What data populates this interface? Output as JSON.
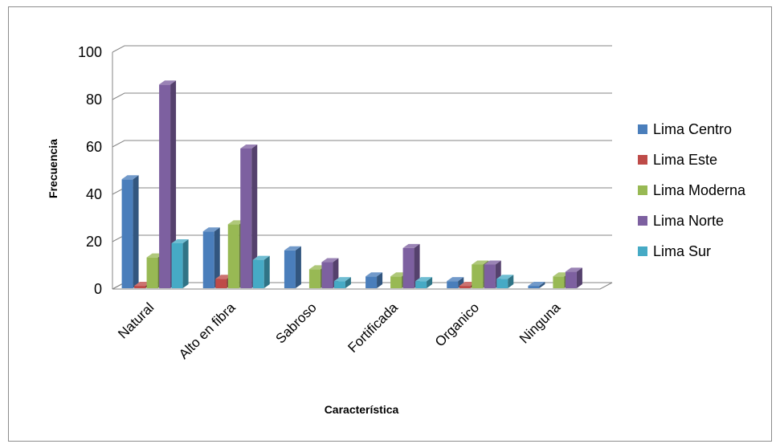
{
  "chart_data": {
    "type": "bar",
    "title": "",
    "xlabel": "Característica",
    "ylabel": "Frecuencia",
    "ylim": [
      0,
      100
    ],
    "yticks": [
      0,
      20,
      40,
      60,
      80,
      100
    ],
    "grid": true,
    "legend_position": "right",
    "categories": [
      "Natural",
      "Alto en fibra",
      "Sabroso",
      "Fortificada",
      "Organico",
      "Ninguna"
    ],
    "series": [
      {
        "name": "Lima Centro",
        "color": "#4a7ebb",
        "values": [
          46,
          24,
          16,
          5,
          3,
          1
        ]
      },
      {
        "name": "Lima Este",
        "color": "#be4b48",
        "values": [
          1,
          4,
          0,
          0,
          1,
          0
        ]
      },
      {
        "name": "Lima Moderna",
        "color": "#98b954",
        "values": [
          13,
          27,
          8,
          5,
          10,
          5
        ]
      },
      {
        "name": "Lima Norte",
        "color": "#7d60a0",
        "values": [
          86,
          59,
          11,
          17,
          10,
          7
        ]
      },
      {
        "name": "Lima Sur",
        "color": "#46aac5",
        "values": [
          19,
          12,
          3,
          3,
          4,
          0
        ]
      }
    ]
  }
}
